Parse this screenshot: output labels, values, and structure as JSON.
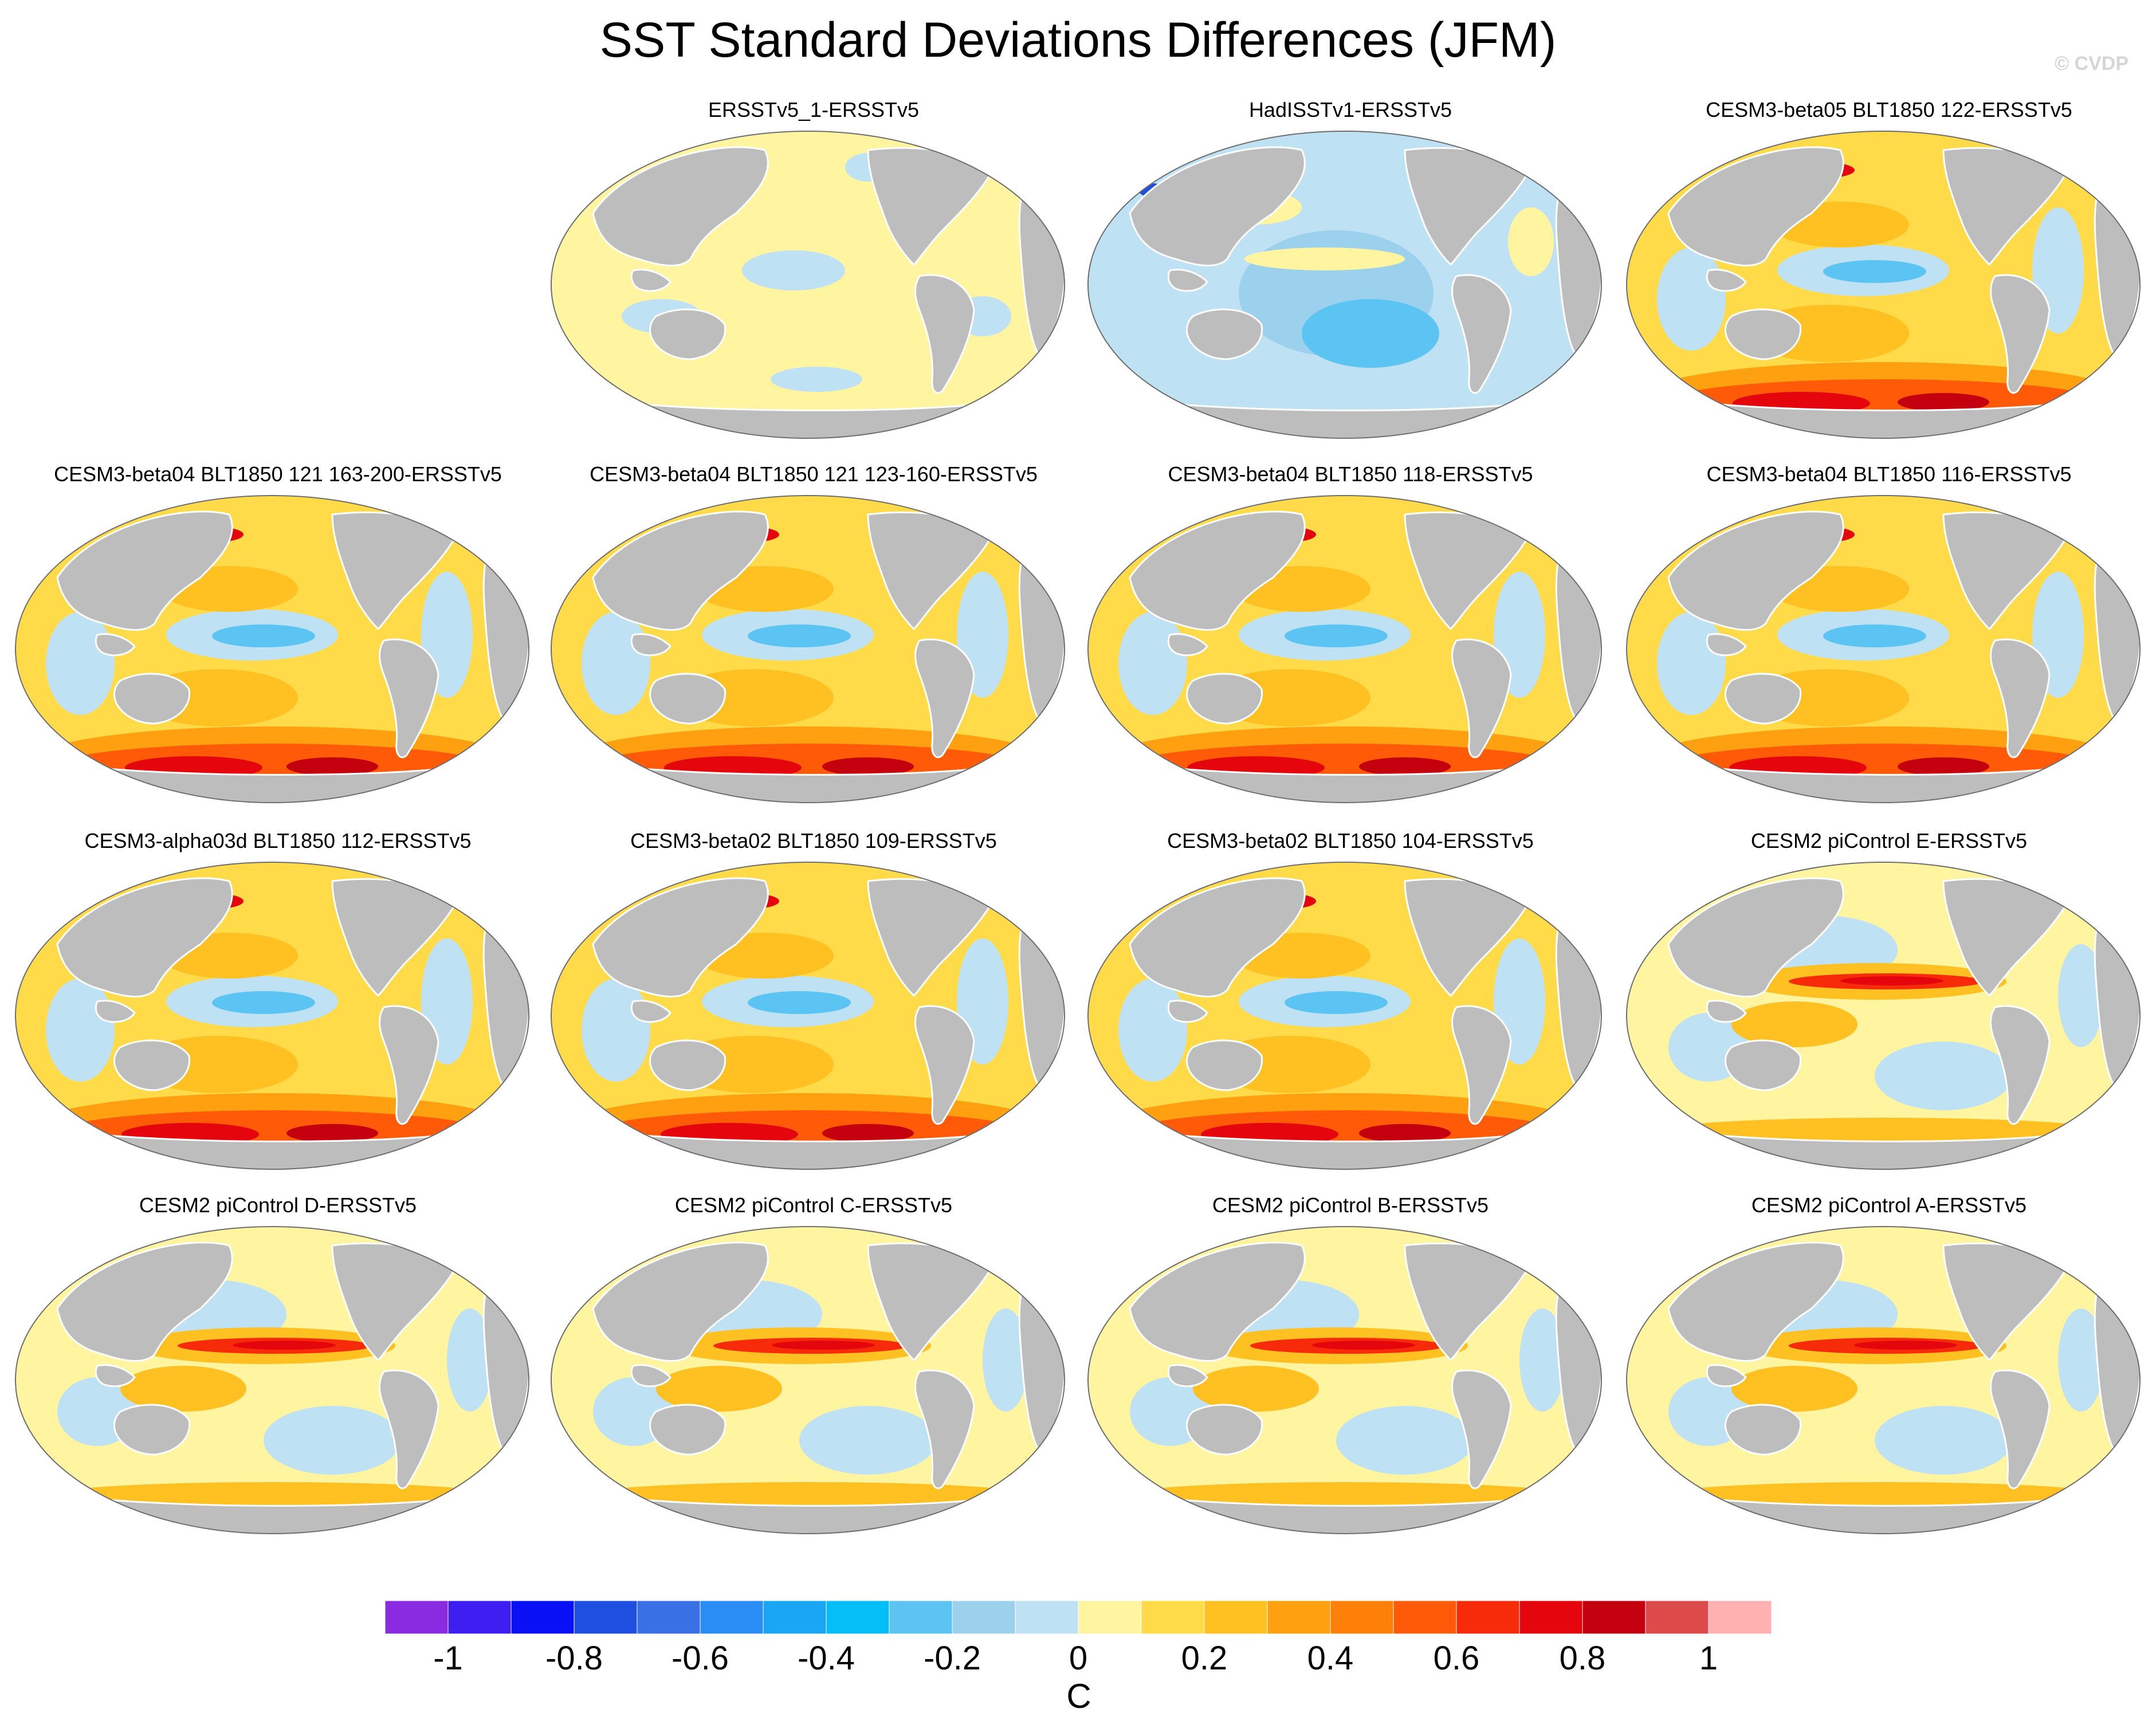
{
  "title": "SST Standard Deviations Differences (JFM)",
  "watermark": "© CVDP",
  "panels": [
    {
      "label": "ERSSTv5_1-ERSSTv5",
      "pattern": "near-zero"
    },
    {
      "label": "HadISSTv1-ERSSTv5",
      "pattern": "negative"
    },
    {
      "label": "CESM3-beta05 BLT1850 122-ERSSTv5",
      "pattern": "strong-positive"
    },
    {
      "label": "CESM3-beta04 BLT1850 121 163-200-ERSSTv5",
      "pattern": "strong-positive"
    },
    {
      "label": "CESM3-beta04 BLT1850 121 123-160-ERSSTv5",
      "pattern": "strong-positive"
    },
    {
      "label": "CESM3-beta04 BLT1850 118-ERSSTv5",
      "pattern": "strong-positive"
    },
    {
      "label": "CESM3-beta04 BLT1850 116-ERSSTv5",
      "pattern": "strong-positive"
    },
    {
      "label": "CESM3-alpha03d BLT1850 112-ERSSTv5",
      "pattern": "strong-positive"
    },
    {
      "label": "CESM3-beta02 BLT1850 109-ERSSTv5",
      "pattern": "strong-positive"
    },
    {
      "label": "CESM3-beta02 BLT1850 104-ERSSTv5",
      "pattern": "strong-positive"
    },
    {
      "label": "CESM2 piControl E-ERSSTv5",
      "pattern": "enso-positive"
    },
    {
      "label": "CESM2 piControl D-ERSSTv5",
      "pattern": "enso-positive"
    },
    {
      "label": "CESM2 piControl C-ERSSTv5",
      "pattern": "enso-positive"
    },
    {
      "label": "CESM2 piControl B-ERSSTv5",
      "pattern": "enso-positive"
    },
    {
      "label": "CESM2 piControl A-ERSSTv5",
      "pattern": "enso-positive"
    }
  ],
  "colorbar": {
    "units": "C",
    "labels": [
      "-1",
      "-0.8",
      "-0.6",
      "-0.4",
      "-0.2",
      "0",
      "0.2",
      "0.4",
      "0.6",
      "0.8",
      "1"
    ],
    "colors": [
      "#8a2be2",
      "#3d1df0",
      "#0a10f5",
      "#1e4fe0",
      "#3a70e6",
      "#2a8cf5",
      "#1aa6f5",
      "#04bef8",
      "#5cc4f2",
      "#9cd1ee",
      "#bfe1f4",
      "#fff5a0",
      "#ffdb4a",
      "#ffc022",
      "#ffa010",
      "#ff8008",
      "#ff5a08",
      "#f72a0a",
      "#e4050d",
      "#c4000e",
      "#dc4a4a",
      "#ffb0b0"
    ]
  },
  "map_colors": {
    "land": "#bdbdbd",
    "near_zero_pos": "#fff5a0",
    "near_zero_neg": "#bfe1f4"
  }
}
